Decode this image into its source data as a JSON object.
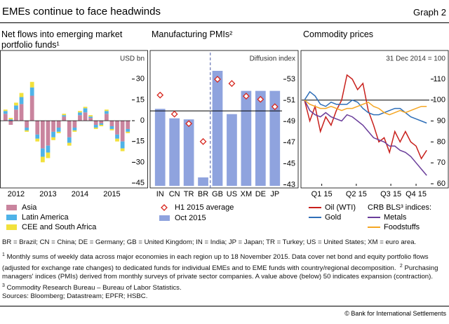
{
  "header": {
    "title": "EMEs continue to face headwinds",
    "graph_label": "Graph 2"
  },
  "chart_data": [
    {
      "type": "bar",
      "stacked": true,
      "title": "Net flows into emerging market portfolio funds¹",
      "unit": "USD bn",
      "categories": [
        null,
        null,
        "2012",
        null,
        null,
        null,
        null,
        null,
        "2013",
        null,
        null,
        null,
        null,
        null,
        "2014",
        null,
        null,
        null,
        null,
        null,
        "2015",
        null,
        null,
        null
      ],
      "series": [
        {
          "name": "Asia",
          "color": "#c9849e",
          "values": [
            5,
            -3,
            8,
            12,
            -5,
            18,
            -10,
            -20,
            -18,
            -8,
            -5,
            3,
            -12,
            -5,
            4,
            6,
            2,
            -3,
            -2,
            5,
            -4,
            -10,
            -15,
            -6
          ]
        },
        {
          "name": "Latin America",
          "color": "#4fb3e8",
          "values": [
            2,
            1,
            3,
            5,
            -2,
            6,
            -3,
            -6,
            -5,
            -4,
            -3,
            1,
            -4,
            -2,
            2,
            3,
            1,
            -2,
            -1,
            2,
            -2,
            -3,
            -5,
            -2
          ]
        },
        {
          "name": "CEE and South Africa",
          "color": "#f2e13c",
          "values": [
            1,
            1,
            2,
            3,
            -1,
            4,
            -2,
            -4,
            -4,
            -2,
            -1,
            1,
            -2,
            -1,
            1,
            1,
            1,
            -1,
            -1,
            1,
            -1,
            -2,
            -2,
            -1
          ]
        }
      ],
      "ylim": [
        -47,
        39
      ],
      "yticks": [
        30,
        15,
        0,
        -15,
        -30,
        -45
      ]
    },
    {
      "type": "bar",
      "title": "Manufacturing PMIs²",
      "unit": "Diffusion index",
      "categories": [
        "IN",
        "CN",
        "TR",
        "BR",
        "GB",
        "US",
        "XM",
        "DE",
        "JP"
      ],
      "series": [
        {
          "name": "H1 2015 average",
          "color": "#d7261e",
          "marker": "diamond",
          "values": [
            51.5,
            49.7,
            48.8,
            47.1,
            53.0,
            52.6,
            51.4,
            51.1,
            50.4
          ]
        },
        {
          "name": "Oct 2015",
          "color": "#8fa3de",
          "values": [
            50.2,
            49.3,
            49.2,
            43.7,
            53.8,
            49.7,
            51.9,
            51.9,
            51.9
          ]
        }
      ],
      "reference_line": 50,
      "ylim": [
        42.9,
        54.2
      ],
      "yticks": [
        53,
        51,
        49,
        47,
        45,
        43
      ]
    },
    {
      "type": "line",
      "title": "Commodity prices",
      "unit": "31 Dec 2014 = 100",
      "x": [
        0,
        2,
        4,
        6,
        8,
        10,
        12,
        14,
        16,
        18,
        20,
        22,
        24,
        26,
        28,
        30,
        32,
        34,
        36,
        38,
        40,
        42,
        44,
        46
      ],
      "series": [
        {
          "name": "Oil (WTI)",
          "color": "#c8201c",
          "values": [
            100,
            90,
            97,
            85,
            92,
            88,
            95,
            100,
            112,
            110,
            105,
            108,
            95,
            88,
            80,
            82,
            75,
            85,
            80,
            85,
            80,
            78,
            72,
            76
          ]
        },
        {
          "name": "Gold",
          "color": "#2f6fb8",
          "values": [
            100,
            104,
            102,
            98,
            97,
            99,
            98,
            98,
            98,
            100,
            99,
            96,
            94,
            93,
            93,
            94,
            95,
            96,
            96,
            94,
            92,
            91,
            90,
            89
          ]
        },
        {
          "name": "Metals",
          "color": "#6a3d9a",
          "values": [
            100,
            95,
            93,
            92,
            94,
            92,
            91,
            90,
            93,
            92,
            90,
            88,
            85,
            82,
            81,
            80,
            78,
            78,
            76,
            75,
            73,
            70,
            67,
            64
          ]
        },
        {
          "name": "Foodstuffs",
          "color": "#f5a623",
          "values": [
            100,
            98,
            97,
            96,
            96,
            97,
            96,
            95,
            96,
            96,
            97,
            98,
            99,
            97,
            96,
            94,
            93,
            94,
            95,
            94,
            95,
            96,
            97,
            97
          ]
        }
      ],
      "legend_group_label": "CRB BLS³ indices:",
      "reference_line": 100,
      "xlim": [
        0,
        47
      ],
      "xticks": [
        {
          "value": 6.5,
          "label": "Q1 15"
        },
        {
          "value": 19.5,
          "label": "Q2 15"
        },
        {
          "value": 32.5,
          "label": "Q3 15"
        },
        {
          "value": 42,
          "label": "Q4 15"
        }
      ],
      "ylim": [
        59,
        116
      ],
      "yticks": [
        110,
        100,
        90,
        80,
        70,
        60
      ]
    }
  ],
  "notes": {
    "abbreviations": "BR = Brazil; CN = China; DE = Germany; GB = United Kingdom; IN = India; JP = Japan; TR = Turkey; US = United States; XM = euro area.",
    "footnotes": [
      {
        "marker": "1",
        "text": "Monthly sums of weekly data across major economies in each region up to 18 November 2015. Data cover net bond and equity portfolio flows (adjusted for exchange rate changes) to dedicated funds for individual EMEs and to EME funds with country/regional decomposition."
      },
      {
        "marker": "2",
        "text": "Purchasing managers' indices (PMIs) derived from monthly surveys of private sector companies. A value above (below) 50 indicates expansion (contraction)."
      },
      {
        "marker": "3",
        "text": "Commodity Research Bureau – Bureau of Labor Statistics."
      }
    ],
    "sources": "Sources: Bloomberg; Datastream; EPFR; HSBC.",
    "copyright": "© Bank for International Settlements"
  }
}
